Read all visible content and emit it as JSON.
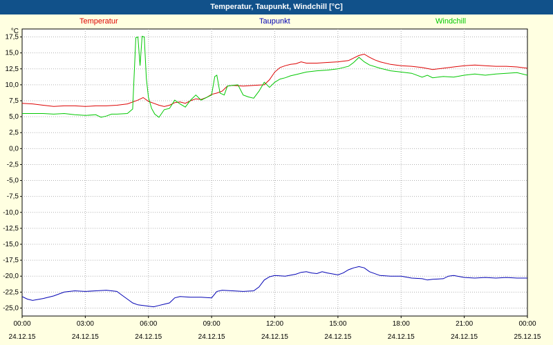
{
  "title_bar": {
    "title": "Temperatur, Taupunkt, Windchill [°C]",
    "bg": "#11518a",
    "fg": "#ffffff"
  },
  "page_bg": "#ffffe1",
  "legend": [
    {
      "label": "Temperatur",
      "color": "#dd0000"
    },
    {
      "label": "Taupunkt",
      "color": "#0000b4"
    },
    {
      "label": "Windchill",
      "color": "#00c800"
    }
  ],
  "chart_data": {
    "type": "line",
    "title": "Temperatur, Taupunkt, Windchill [°C]",
    "ylabel": "°C",
    "xlabel": "",
    "ylim": [
      -25,
      17.5
    ],
    "ytick_step": 2.5,
    "xlim": [
      0,
      24
    ],
    "grid": "dotted",
    "grid_color": "#b0b0b0",
    "plot_bg": "#ffffff",
    "legend_position": "top",
    "yticks": [
      {
        "value": 17.5,
        "label": "17,5"
      },
      {
        "value": 15.0,
        "label": "15,0"
      },
      {
        "value": 12.5,
        "label": "12,5"
      },
      {
        "value": 10.0,
        "label": "10,0"
      },
      {
        "value": 7.5,
        "label": "7,5"
      },
      {
        "value": 5.0,
        "label": "5,0"
      },
      {
        "value": 2.5,
        "label": "2,5"
      },
      {
        "value": 0.0,
        "label": "0,0"
      },
      {
        "value": -2.5,
        "label": "-2,5"
      },
      {
        "value": -5.0,
        "label": "-5,0"
      },
      {
        "value": -7.5,
        "label": "-7,5"
      },
      {
        "value": -10.0,
        "label": "-10,0"
      },
      {
        "value": -12.5,
        "label": "-12,5"
      },
      {
        "value": -15.0,
        "label": "-15,0"
      },
      {
        "value": -17.5,
        "label": "-17,5"
      },
      {
        "value": -20.0,
        "label": "-20,0"
      },
      {
        "value": -22.5,
        "label": "-22,5"
      },
      {
        "value": -25.0,
        "label": "-25,0"
      }
    ],
    "xticks": [
      {
        "hour": 0,
        "time": "00:00",
        "date": "24.12.15"
      },
      {
        "hour": 3,
        "time": "03:00",
        "date": "24.12.15"
      },
      {
        "hour": 6,
        "time": "06:00",
        "date": "24.12.15"
      },
      {
        "hour": 9,
        "time": "09:00",
        "date": "24.12.15"
      },
      {
        "hour": 12,
        "time": "12:00",
        "date": "24.12.15"
      },
      {
        "hour": 15,
        "time": "15:00",
        "date": "24.12.15"
      },
      {
        "hour": 18,
        "time": "18:00",
        "date": "24.12.15"
      },
      {
        "hour": 21,
        "time": "21:00",
        "date": "24.12.15"
      },
      {
        "hour": 24,
        "time": "00:00",
        "date": "25.12.15"
      }
    ],
    "series": [
      {
        "name": "Temperatur",
        "color": "#dd0000",
        "points": [
          [
            0,
            7.1
          ],
          [
            0.5,
            7.0
          ],
          [
            1,
            6.8
          ],
          [
            1.5,
            6.6
          ],
          [
            2,
            6.7
          ],
          [
            2.5,
            6.7
          ],
          [
            3,
            6.6
          ],
          [
            3.5,
            6.7
          ],
          [
            4,
            6.7
          ],
          [
            4.5,
            6.8
          ],
          [
            5,
            7.0
          ],
          [
            5.5,
            7.6
          ],
          [
            5.75,
            8.0
          ],
          [
            6,
            7.4
          ],
          [
            6.25,
            7.1
          ],
          [
            6.5,
            6.8
          ],
          [
            6.75,
            6.6
          ],
          [
            7,
            6.8
          ],
          [
            7.25,
            7.2
          ],
          [
            7.5,
            7.3
          ],
          [
            7.75,
            7.1
          ],
          [
            8,
            7.5
          ],
          [
            8.25,
            7.8
          ],
          [
            8.5,
            7.7
          ],
          [
            8.75,
            8.0
          ],
          [
            9,
            8.5
          ],
          [
            9.25,
            8.7
          ],
          [
            9.5,
            9.0
          ],
          [
            9.75,
            9.8
          ],
          [
            10,
            9.9
          ],
          [
            10.5,
            9.8
          ],
          [
            11,
            9.9
          ],
          [
            11.5,
            10.0
          ],
          [
            11.75,
            10.8
          ],
          [
            12,
            12.0
          ],
          [
            12.25,
            12.7
          ],
          [
            12.5,
            13.0
          ],
          [
            12.75,
            13.2
          ],
          [
            13,
            13.3
          ],
          [
            13.25,
            13.6
          ],
          [
            13.5,
            13.4
          ],
          [
            14,
            13.4
          ],
          [
            14.5,
            13.5
          ],
          [
            15,
            13.6
          ],
          [
            15.5,
            13.8
          ],
          [
            15.75,
            14.2
          ],
          [
            16,
            14.6
          ],
          [
            16.25,
            14.8
          ],
          [
            16.5,
            14.3
          ],
          [
            16.75,
            13.9
          ],
          [
            17,
            13.6
          ],
          [
            17.5,
            13.2
          ],
          [
            18,
            13.0
          ],
          [
            18.5,
            12.9
          ],
          [
            19,
            12.7
          ],
          [
            19.5,
            12.4
          ],
          [
            20,
            12.6
          ],
          [
            20.5,
            12.8
          ],
          [
            21,
            13.0
          ],
          [
            21.5,
            13.1
          ],
          [
            22,
            13.0
          ],
          [
            22.5,
            12.9
          ],
          [
            23,
            12.9
          ],
          [
            23.5,
            12.8
          ],
          [
            24,
            12.6
          ]
        ]
      },
      {
        "name": "Taupunkt",
        "color": "#0000b4",
        "points": [
          [
            0,
            -23.2
          ],
          [
            0.25,
            -23.6
          ],
          [
            0.5,
            -23.8
          ],
          [
            1,
            -23.5
          ],
          [
            1.5,
            -23.1
          ],
          [
            2,
            -22.5
          ],
          [
            2.5,
            -22.3
          ],
          [
            3,
            -22.4
          ],
          [
            3.5,
            -22.3
          ],
          [
            4,
            -22.2
          ],
          [
            4.5,
            -22.4
          ],
          [
            4.75,
            -23.0
          ],
          [
            5,
            -23.6
          ],
          [
            5.25,
            -24.2
          ],
          [
            5.5,
            -24.5
          ],
          [
            6,
            -24.7
          ],
          [
            6.25,
            -24.8
          ],
          [
            6.5,
            -24.6
          ],
          [
            6.75,
            -24.4
          ],
          [
            7,
            -24.2
          ],
          [
            7.25,
            -23.4
          ],
          [
            7.5,
            -23.2
          ],
          [
            8,
            -23.3
          ],
          [
            8.5,
            -23.3
          ],
          [
            9,
            -23.4
          ],
          [
            9.25,
            -22.4
          ],
          [
            9.5,
            -22.2
          ],
          [
            10,
            -22.3
          ],
          [
            10.5,
            -22.4
          ],
          [
            11,
            -22.3
          ],
          [
            11.25,
            -21.7
          ],
          [
            11.5,
            -20.6
          ],
          [
            11.75,
            -20.1
          ],
          [
            12,
            -19.9
          ],
          [
            12.5,
            -20.0
          ],
          [
            13,
            -19.7
          ],
          [
            13.25,
            -19.4
          ],
          [
            13.5,
            -19.3
          ],
          [
            13.75,
            -19.5
          ],
          [
            14,
            -19.6
          ],
          [
            14.25,
            -19.3
          ],
          [
            14.5,
            -19.5
          ],
          [
            15,
            -19.8
          ],
          [
            15.25,
            -19.5
          ],
          [
            15.5,
            -19.0
          ],
          [
            15.75,
            -18.7
          ],
          [
            16,
            -18.5
          ],
          [
            16.25,
            -18.7
          ],
          [
            16.5,
            -19.3
          ],
          [
            17,
            -19.9
          ],
          [
            17.5,
            -20.0
          ],
          [
            18,
            -20.0
          ],
          [
            18.5,
            -20.3
          ],
          [
            19,
            -20.4
          ],
          [
            19.25,
            -20.6
          ],
          [
            19.5,
            -20.5
          ],
          [
            20,
            -20.4
          ],
          [
            20.25,
            -20.0
          ],
          [
            20.5,
            -19.9
          ],
          [
            21,
            -20.2
          ],
          [
            21.5,
            -20.3
          ],
          [
            22,
            -20.2
          ],
          [
            22.5,
            -20.3
          ],
          [
            23,
            -20.2
          ],
          [
            23.5,
            -20.3
          ],
          [
            24,
            -20.3
          ]
        ]
      },
      {
        "name": "Windchill",
        "color": "#00c800",
        "points": [
          [
            0,
            5.5
          ],
          [
            0.5,
            5.5
          ],
          [
            1,
            5.5
          ],
          [
            1.5,
            5.4
          ],
          [
            2,
            5.5
          ],
          [
            2.5,
            5.3
          ],
          [
            3,
            5.2
          ],
          [
            3.5,
            5.3
          ],
          [
            3.75,
            4.9
          ],
          [
            4,
            5.1
          ],
          [
            4.25,
            5.4
          ],
          [
            4.5,
            5.4
          ],
          [
            5,
            5.5
          ],
          [
            5.25,
            6.2
          ],
          [
            5.4,
            17.4
          ],
          [
            5.5,
            17.5
          ],
          [
            5.6,
            13.0
          ],
          [
            5.7,
            17.6
          ],
          [
            5.8,
            17.5
          ],
          [
            5.9,
            11.0
          ],
          [
            6,
            8.0
          ],
          [
            6.15,
            6.3
          ],
          [
            6.3,
            5.4
          ],
          [
            6.5,
            4.9
          ],
          [
            6.75,
            6.1
          ],
          [
            7,
            6.3
          ],
          [
            7.25,
            7.6
          ],
          [
            7.5,
            7.0
          ],
          [
            7.75,
            6.5
          ],
          [
            8,
            7.6
          ],
          [
            8.25,
            8.4
          ],
          [
            8.5,
            7.6
          ],
          [
            8.75,
            8.0
          ],
          [
            9,
            8.4
          ],
          [
            9.15,
            11.3
          ],
          [
            9.25,
            11.5
          ],
          [
            9.4,
            8.7
          ],
          [
            9.6,
            8.4
          ],
          [
            9.75,
            9.8
          ],
          [
            10,
            9.9
          ],
          [
            10.25,
            10.0
          ],
          [
            10.5,
            8.4
          ],
          [
            10.75,
            8.1
          ],
          [
            11,
            7.9
          ],
          [
            11.25,
            9.0
          ],
          [
            11.5,
            10.4
          ],
          [
            11.75,
            9.6
          ],
          [
            12,
            10.4
          ],
          [
            12.25,
            10.9
          ],
          [
            12.5,
            11.1
          ],
          [
            12.75,
            11.4
          ],
          [
            13,
            11.6
          ],
          [
            13.5,
            12.0
          ],
          [
            14,
            12.2
          ],
          [
            14.5,
            12.3
          ],
          [
            15,
            12.5
          ],
          [
            15.5,
            12.9
          ],
          [
            15.75,
            13.5
          ],
          [
            16,
            14.3
          ],
          [
            16.25,
            13.6
          ],
          [
            16.5,
            13.1
          ],
          [
            17,
            12.6
          ],
          [
            17.5,
            12.2
          ],
          [
            18,
            12.0
          ],
          [
            18.5,
            11.8
          ],
          [
            19,
            11.2
          ],
          [
            19.25,
            11.5
          ],
          [
            19.5,
            11.1
          ],
          [
            20,
            11.3
          ],
          [
            20.5,
            11.2
          ],
          [
            21,
            11.5
          ],
          [
            21.5,
            11.7
          ],
          [
            22,
            11.5
          ],
          [
            22.5,
            11.7
          ],
          [
            23,
            11.8
          ],
          [
            23.5,
            11.9
          ],
          [
            24,
            11.5
          ]
        ]
      }
    ]
  }
}
